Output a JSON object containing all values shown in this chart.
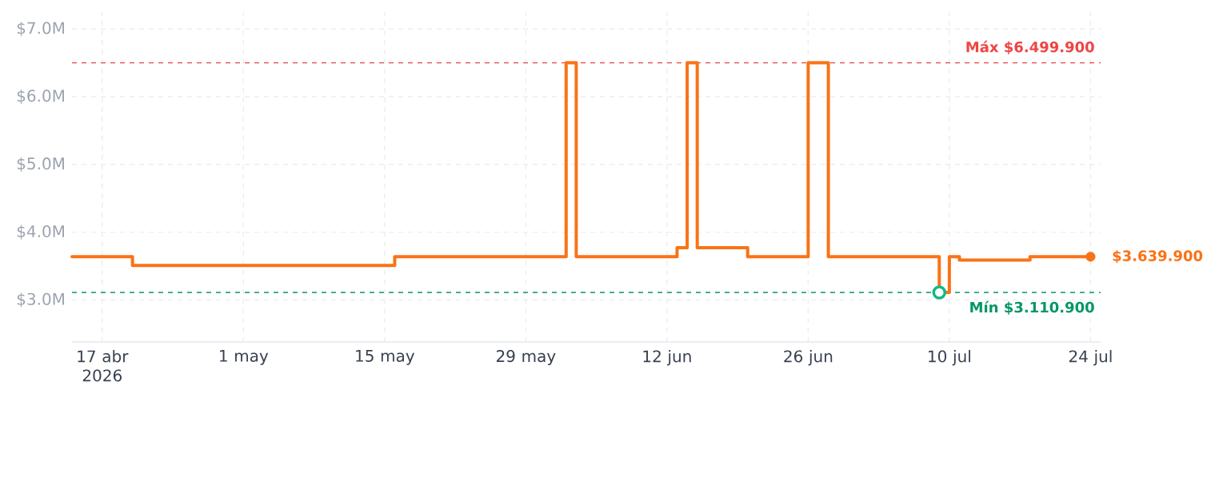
{
  "chart_data": {
    "type": "step",
    "x": [
      "2026-04-14",
      "2026-04-20",
      "2026-05-16",
      "2026-06-02",
      "2026-06-03",
      "2026-06-13",
      "2026-06-14",
      "2026-06-15",
      "2026-06-20",
      "2026-06-26",
      "2026-06-28",
      "2026-07-09",
      "2026-07-10",
      "2026-07-11",
      "2026-07-18",
      "2026-07-24"
    ],
    "series": [
      {
        "color": "#f97316",
        "values": [
          3.6399,
          3.51,
          3.6399,
          6.4999,
          3.6399,
          3.77,
          6.4999,
          3.77,
          3.6399,
          6.4999,
          3.6399,
          3.1109,
          3.6399,
          3.59,
          3.6399,
          3.6399
        ]
      },
      {
        "type": "scatter",
        "color": "#f97316",
        "x": [
          "2026-07-24"
        ],
        "values": [
          3.6399
        ],
        "marker": "circle"
      },
      {
        "type": "scatter",
        "color": "#10b981",
        "x": [
          "2026-07-09"
        ],
        "values": [
          3.1109
        ],
        "marker": "circle"
      }
    ],
    "xlim": [
      "2026-04-14",
      "2026-07-25"
    ],
    "ylim": [
      2.38,
      7.25
    ],
    "xticks": [
      {
        "value": "2026-04-17",
        "label": "17 abr 2026"
      },
      {
        "value": "2026-05-01",
        "label": "1 may"
      },
      {
        "value": "2026-05-15",
        "label": "15 may"
      },
      {
        "value": "2026-05-29",
        "label": "29 may"
      },
      {
        "value": "2026-06-12",
        "label": "12 jun"
      },
      {
        "value": "2026-06-26",
        "label": "26 jun"
      },
      {
        "value": "2026-07-10",
        "label": "10 jul"
      },
      {
        "value": "2026-07-24",
        "label": "24 jul"
      }
    ],
    "yticks": [
      {
        "value": 3,
        "label": "$3.0M"
      },
      {
        "value": 4,
        "label": "$4.0M"
      },
      {
        "value": 5,
        "label": "$5.0M"
      },
      {
        "value": 6,
        "label": "$6.0M"
      },
      {
        "value": 7,
        "label": "$7.0M"
      }
    ],
    "grid": true,
    "ref_lines": [
      {
        "axis": "y",
        "value": 6.4999,
        "label": "Máx $6.499.900",
        "color": "#ef4444",
        "line_style": "dashed"
      },
      {
        "axis": "y",
        "value": 3.1109,
        "label": "Mín $3.110.900",
        "color": "#059669",
        "line_style": "dashed"
      }
    ],
    "annotations": [
      {
        "text": "$3.639.900",
        "x": "2026-07-24",
        "y": 3.6399
      }
    ]
  }
}
